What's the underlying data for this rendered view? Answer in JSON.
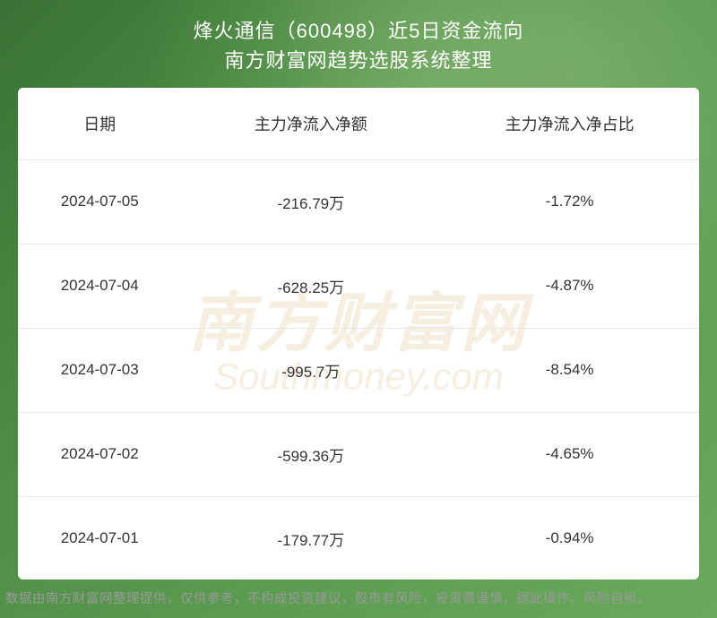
{
  "header": {
    "title": "烽火通信（600498）近5日资金流向",
    "subtitle": "南方财富网趋势选股系统整理"
  },
  "table": {
    "columns": [
      {
        "key": "date",
        "label": "日期"
      },
      {
        "key": "amount",
        "label": "主力净流入净额"
      },
      {
        "key": "ratio",
        "label": "主力净流入净占比"
      }
    ],
    "rows": [
      {
        "date": "2024-07-05",
        "amount": "-216.79万",
        "ratio": "-1.72%"
      },
      {
        "date": "2024-07-04",
        "amount": "-628.25万",
        "ratio": "-4.87%"
      },
      {
        "date": "2024-07-03",
        "amount": "-995.7万",
        "ratio": "-8.54%"
      },
      {
        "date": "2024-07-02",
        "amount": "-599.36万",
        "ratio": "-4.65%"
      },
      {
        "date": "2024-07-01",
        "amount": "-179.77万",
        "ratio": "-0.94%"
      }
    ]
  },
  "watermark": {
    "cn": "南方财富网",
    "en": "Southmoney.com"
  },
  "footer": {
    "disclaimer": "数据由南方财富网整理提供，仅供参考，不构成投资建议，股市有风险，投资需谨慎，据此操作，风险自担。"
  },
  "styling": {
    "background_gradient_start": "#3a7235",
    "background_gradient_end": "#6aaa5c",
    "table_background": "#ffffff",
    "border_color": "#e8e8e8",
    "text_color": "#333333",
    "header_text_color": "#ffffff",
    "footer_text_color": "#999999",
    "watermark_color": "#b8860b",
    "title_fontsize": 22,
    "th_fontsize": 18,
    "td_fontsize": 17,
    "footer_fontsize": 14.5
  }
}
